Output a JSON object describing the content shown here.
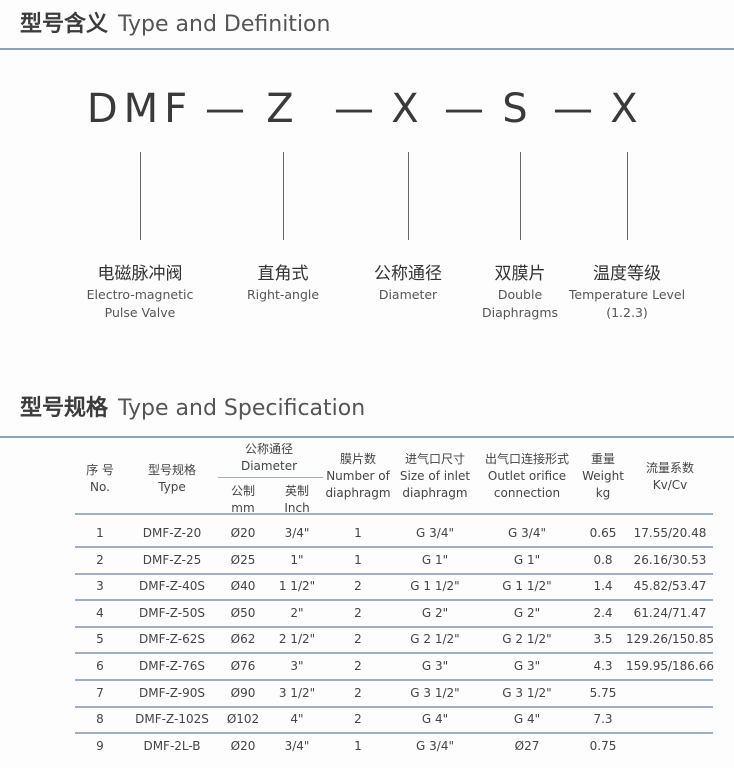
{
  "definition": {
    "title_zh": "型号含义",
    "title_en": "Type and Definition",
    "code_parts": [
      "DMF",
      "—",
      "Z",
      "—",
      "X",
      "—",
      "S",
      "—",
      "X"
    ],
    "labels": [
      {
        "zh": "电磁脉冲阀",
        "en": [
          "Electro-magnetic",
          "Pulse Valve"
        ]
      },
      {
        "zh": "直角式",
        "en": [
          "Right-angle"
        ]
      },
      {
        "zh": "公称通径",
        "en": [
          "Diameter"
        ]
      },
      {
        "zh": "双膜片",
        "en": [
          "Double",
          "Diaphragms"
        ]
      },
      {
        "zh": "温度等级",
        "en": [
          "Temperature Level",
          "(1.2.3)"
        ]
      }
    ]
  },
  "specification": {
    "title_zh": "型号规格",
    "title_en": "Type and Specification",
    "headers": {
      "no": [
        "序 号",
        "No."
      ],
      "type": [
        "型号规格",
        "Type"
      ],
      "diameter": [
        "公称通径",
        "Diameter"
      ],
      "mm": [
        "公制",
        "mm"
      ],
      "inch": [
        "英制",
        "Inch"
      ],
      "diaphragm": [
        "膜片数",
        "Number of",
        "diaphragm"
      ],
      "inlet": [
        "进气口尺寸",
        "Size of inlet",
        "diaphragm"
      ],
      "outlet": [
        "出气口连接形式",
        "Outlet orifice",
        "connection"
      ],
      "weight": [
        "重量",
        "Weight",
        "kg"
      ],
      "kv": [
        "流量系数",
        "Kv/Cv"
      ]
    },
    "rows": [
      [
        "1",
        "DMF-Z-20",
        "Ø20",
        "3/4\"",
        "1",
        "G 3/4\"",
        "G 3/4\"",
        "0.65",
        "17.55/20.48"
      ],
      [
        "2",
        "DMF-Z-25",
        "Ø25",
        "1\"",
        "1",
        "G 1\"",
        "G 1\"",
        "0.8",
        "26.16/30.53"
      ],
      [
        "3",
        "DMF-Z-40S",
        "Ø40",
        "1 1/2\"",
        "2",
        "G 1 1/2\"",
        "G 1 1/2\"",
        "1.4",
        "45.82/53.47"
      ],
      [
        "4",
        "DMF-Z-50S",
        "Ø50",
        "2\"",
        "2",
        "G 2\"",
        "G 2\"",
        "2.4",
        "61.24/71.47"
      ],
      [
        "5",
        "DMF-Z-62S",
        "Ø62",
        "2 1/2\"",
        "2",
        "G 2 1/2\"",
        "G 2 1/2\"",
        "3.5",
        "129.26/150.85"
      ],
      [
        "6",
        "DMF-Z-76S",
        "Ø76",
        "3\"",
        "2",
        "G 3\"",
        "G 3\"",
        "4.3",
        "159.95/186.66"
      ],
      [
        "7",
        "DMF-Z-90S",
        "Ø90",
        "3 1/2\"",
        "2",
        "G 3 1/2\"",
        "G 3 1/2\"",
        "5.75",
        ""
      ],
      [
        "8",
        "DMF-Z-102S",
        "Ø102",
        "4\"",
        "2",
        "G 4\"",
        "G 4\"",
        "7.3",
        ""
      ],
      [
        "9",
        "DMF-2L-B",
        "Ø20",
        "3/4\"",
        "1",
        "G 3/4\"",
        "Ø27",
        "0.75",
        ""
      ]
    ]
  }
}
